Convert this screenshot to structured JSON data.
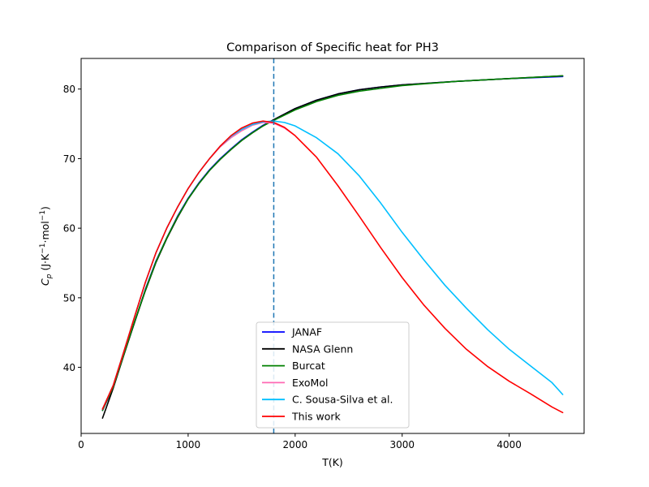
{
  "chart_data": {
    "type": "line",
    "title": "Comparison of Specific heat for PH3",
    "xlabel": "T(K)",
    "ylabel": {
      "base": "C",
      "sub": "p",
      "rest": " (J·K",
      "sup1": "−1",
      "mid": "·mol",
      "sup2": "−1",
      "end": ")"
    },
    "xlim": [
      0,
      4700
    ],
    "ylim": [
      30.5,
      84.4
    ],
    "xticks": [
      0,
      1000,
      2000,
      3000,
      4000
    ],
    "yticks": [
      40,
      50,
      60,
      70,
      80
    ],
    "grid": false,
    "legend_position": "lower center",
    "vline": {
      "x": 1800,
      "color": "#1f77b4",
      "style": "dashed"
    },
    "series": [
      {
        "name": "JANAF",
        "color": "#0000ff",
        "points": [
          [
            200,
            33.8
          ],
          [
            300,
            37.1
          ],
          [
            400,
            41.9
          ],
          [
            500,
            46.5
          ],
          [
            600,
            51.2
          ],
          [
            700,
            55.3
          ],
          [
            800,
            58.6
          ],
          [
            900,
            61.7
          ],
          [
            1000,
            64.3
          ],
          [
            1100,
            66.5
          ],
          [
            1200,
            68.4
          ],
          [
            1300,
            70.0
          ],
          [
            1400,
            71.4
          ],
          [
            1500,
            72.7
          ],
          [
            1600,
            73.8
          ],
          [
            1700,
            74.8
          ],
          [
            1800,
            75.6
          ],
          [
            2000,
            77.2
          ],
          [
            2200,
            78.4
          ],
          [
            2400,
            79.3
          ],
          [
            2600,
            79.9
          ],
          [
            2800,
            80.3
          ],
          [
            3000,
            80.6
          ],
          [
            3500,
            81.1
          ],
          [
            4000,
            81.5
          ],
          [
            4500,
            81.8
          ]
        ]
      },
      {
        "name": "NASA Glenn",
        "color": "#000000",
        "points": [
          [
            200,
            32.7
          ],
          [
            300,
            37.0
          ],
          [
            400,
            41.8
          ],
          [
            500,
            46.5
          ],
          [
            600,
            51.0
          ],
          [
            700,
            55.1
          ],
          [
            800,
            58.5
          ],
          [
            900,
            61.5
          ],
          [
            1000,
            64.2
          ],
          [
            1100,
            66.4
          ],
          [
            1200,
            68.3
          ],
          [
            1300,
            69.9
          ],
          [
            1400,
            71.3
          ],
          [
            1500,
            72.6
          ],
          [
            1600,
            73.7
          ],
          [
            1700,
            74.7
          ],
          [
            1800,
            75.6
          ],
          [
            2000,
            77.2
          ],
          [
            2200,
            78.4
          ],
          [
            2400,
            79.3
          ],
          [
            2600,
            79.9
          ],
          [
            2800,
            80.3
          ],
          [
            3000,
            80.6
          ],
          [
            3500,
            81.1
          ],
          [
            4000,
            81.5
          ],
          [
            4500,
            81.9
          ]
        ]
      },
      {
        "name": "Burcat",
        "color": "#008000",
        "points": [
          [
            200,
            33.8
          ],
          [
            300,
            37.2
          ],
          [
            400,
            41.9
          ],
          [
            500,
            46.6
          ],
          [
            600,
            51.1
          ],
          [
            700,
            55.2
          ],
          [
            800,
            58.6
          ],
          [
            900,
            61.6
          ],
          [
            1000,
            64.2
          ],
          [
            1100,
            66.4
          ],
          [
            1200,
            68.3
          ],
          [
            1300,
            69.9
          ],
          [
            1400,
            71.3
          ],
          [
            1500,
            72.6
          ],
          [
            1600,
            73.7
          ],
          [
            1700,
            74.7
          ],
          [
            1800,
            75.5
          ],
          [
            2000,
            77.0
          ],
          [
            2200,
            78.2
          ],
          [
            2400,
            79.1
          ],
          [
            2600,
            79.7
          ],
          [
            2800,
            80.1
          ],
          [
            3000,
            80.5
          ],
          [
            3500,
            81.1
          ],
          [
            4000,
            81.5
          ],
          [
            4500,
            81.9
          ]
        ]
      },
      {
        "name": "ExoMol",
        "color": "#ff69b4",
        "points": [
          [
            200,
            34.0
          ],
          [
            300,
            37.4
          ],
          [
            400,
            42.3
          ],
          [
            500,
            47.3
          ],
          [
            600,
            52.2
          ],
          [
            700,
            56.5
          ],
          [
            800,
            60.0
          ],
          [
            900,
            63.0
          ],
          [
            1000,
            65.7
          ],
          [
            1100,
            68.0
          ],
          [
            1200,
            70.0
          ],
          [
            1300,
            71.7
          ],
          [
            1400,
            73.0
          ],
          [
            1500,
            74.0
          ],
          [
            1600,
            74.8
          ],
          [
            1700,
            75.2
          ],
          [
            1800,
            75.1
          ],
          [
            1900,
            74.4
          ],
          [
            2000,
            73.3
          ]
        ]
      },
      {
        "name": "C. Sousa-Silva et al.",
        "color": "#00bfff",
        "points": [
          [
            200,
            34.0
          ],
          [
            300,
            37.4
          ],
          [
            400,
            42.3
          ],
          [
            500,
            47.3
          ],
          [
            600,
            52.2
          ],
          [
            700,
            56.5
          ],
          [
            800,
            60.0
          ],
          [
            900,
            63.0
          ],
          [
            1000,
            65.7
          ],
          [
            1100,
            68.0
          ],
          [
            1200,
            70.0
          ],
          [
            1300,
            71.8
          ],
          [
            1400,
            73.2
          ],
          [
            1500,
            74.2
          ],
          [
            1600,
            74.9
          ],
          [
            1700,
            75.3
          ],
          [
            1800,
            75.4
          ],
          [
            1900,
            75.2
          ],
          [
            2000,
            74.7
          ],
          [
            2200,
            73.0
          ],
          [
            2400,
            70.7
          ],
          [
            2600,
            67.5
          ],
          [
            2800,
            63.6
          ],
          [
            3000,
            59.4
          ],
          [
            3200,
            55.5
          ],
          [
            3400,
            51.8
          ],
          [
            3600,
            48.5
          ],
          [
            3800,
            45.4
          ],
          [
            4000,
            42.6
          ],
          [
            4200,
            40.2
          ],
          [
            4400,
            37.8
          ],
          [
            4500,
            36.1
          ]
        ]
      },
      {
        "name": "This work",
        "color": "#ff0000",
        "points": [
          [
            200,
            34.0
          ],
          [
            300,
            37.4
          ],
          [
            400,
            42.3
          ],
          [
            500,
            47.3
          ],
          [
            600,
            52.2
          ],
          [
            700,
            56.5
          ],
          [
            800,
            60.0
          ],
          [
            900,
            63.0
          ],
          [
            1000,
            65.7
          ],
          [
            1100,
            68.0
          ],
          [
            1200,
            70.0
          ],
          [
            1300,
            71.8
          ],
          [
            1400,
            73.3
          ],
          [
            1500,
            74.4
          ],
          [
            1600,
            75.1
          ],
          [
            1700,
            75.4
          ],
          [
            1800,
            75.2
          ],
          [
            1900,
            74.5
          ],
          [
            2000,
            73.3
          ],
          [
            2200,
            70.2
          ],
          [
            2400,
            66.1
          ],
          [
            2600,
            61.7
          ],
          [
            2800,
            57.2
          ],
          [
            3000,
            52.9
          ],
          [
            3200,
            49.0
          ],
          [
            3400,
            45.6
          ],
          [
            3600,
            42.6
          ],
          [
            3800,
            40.1
          ],
          [
            4000,
            38.0
          ],
          [
            4200,
            36.2
          ],
          [
            4400,
            34.3
          ],
          [
            4500,
            33.5
          ]
        ]
      }
    ]
  }
}
